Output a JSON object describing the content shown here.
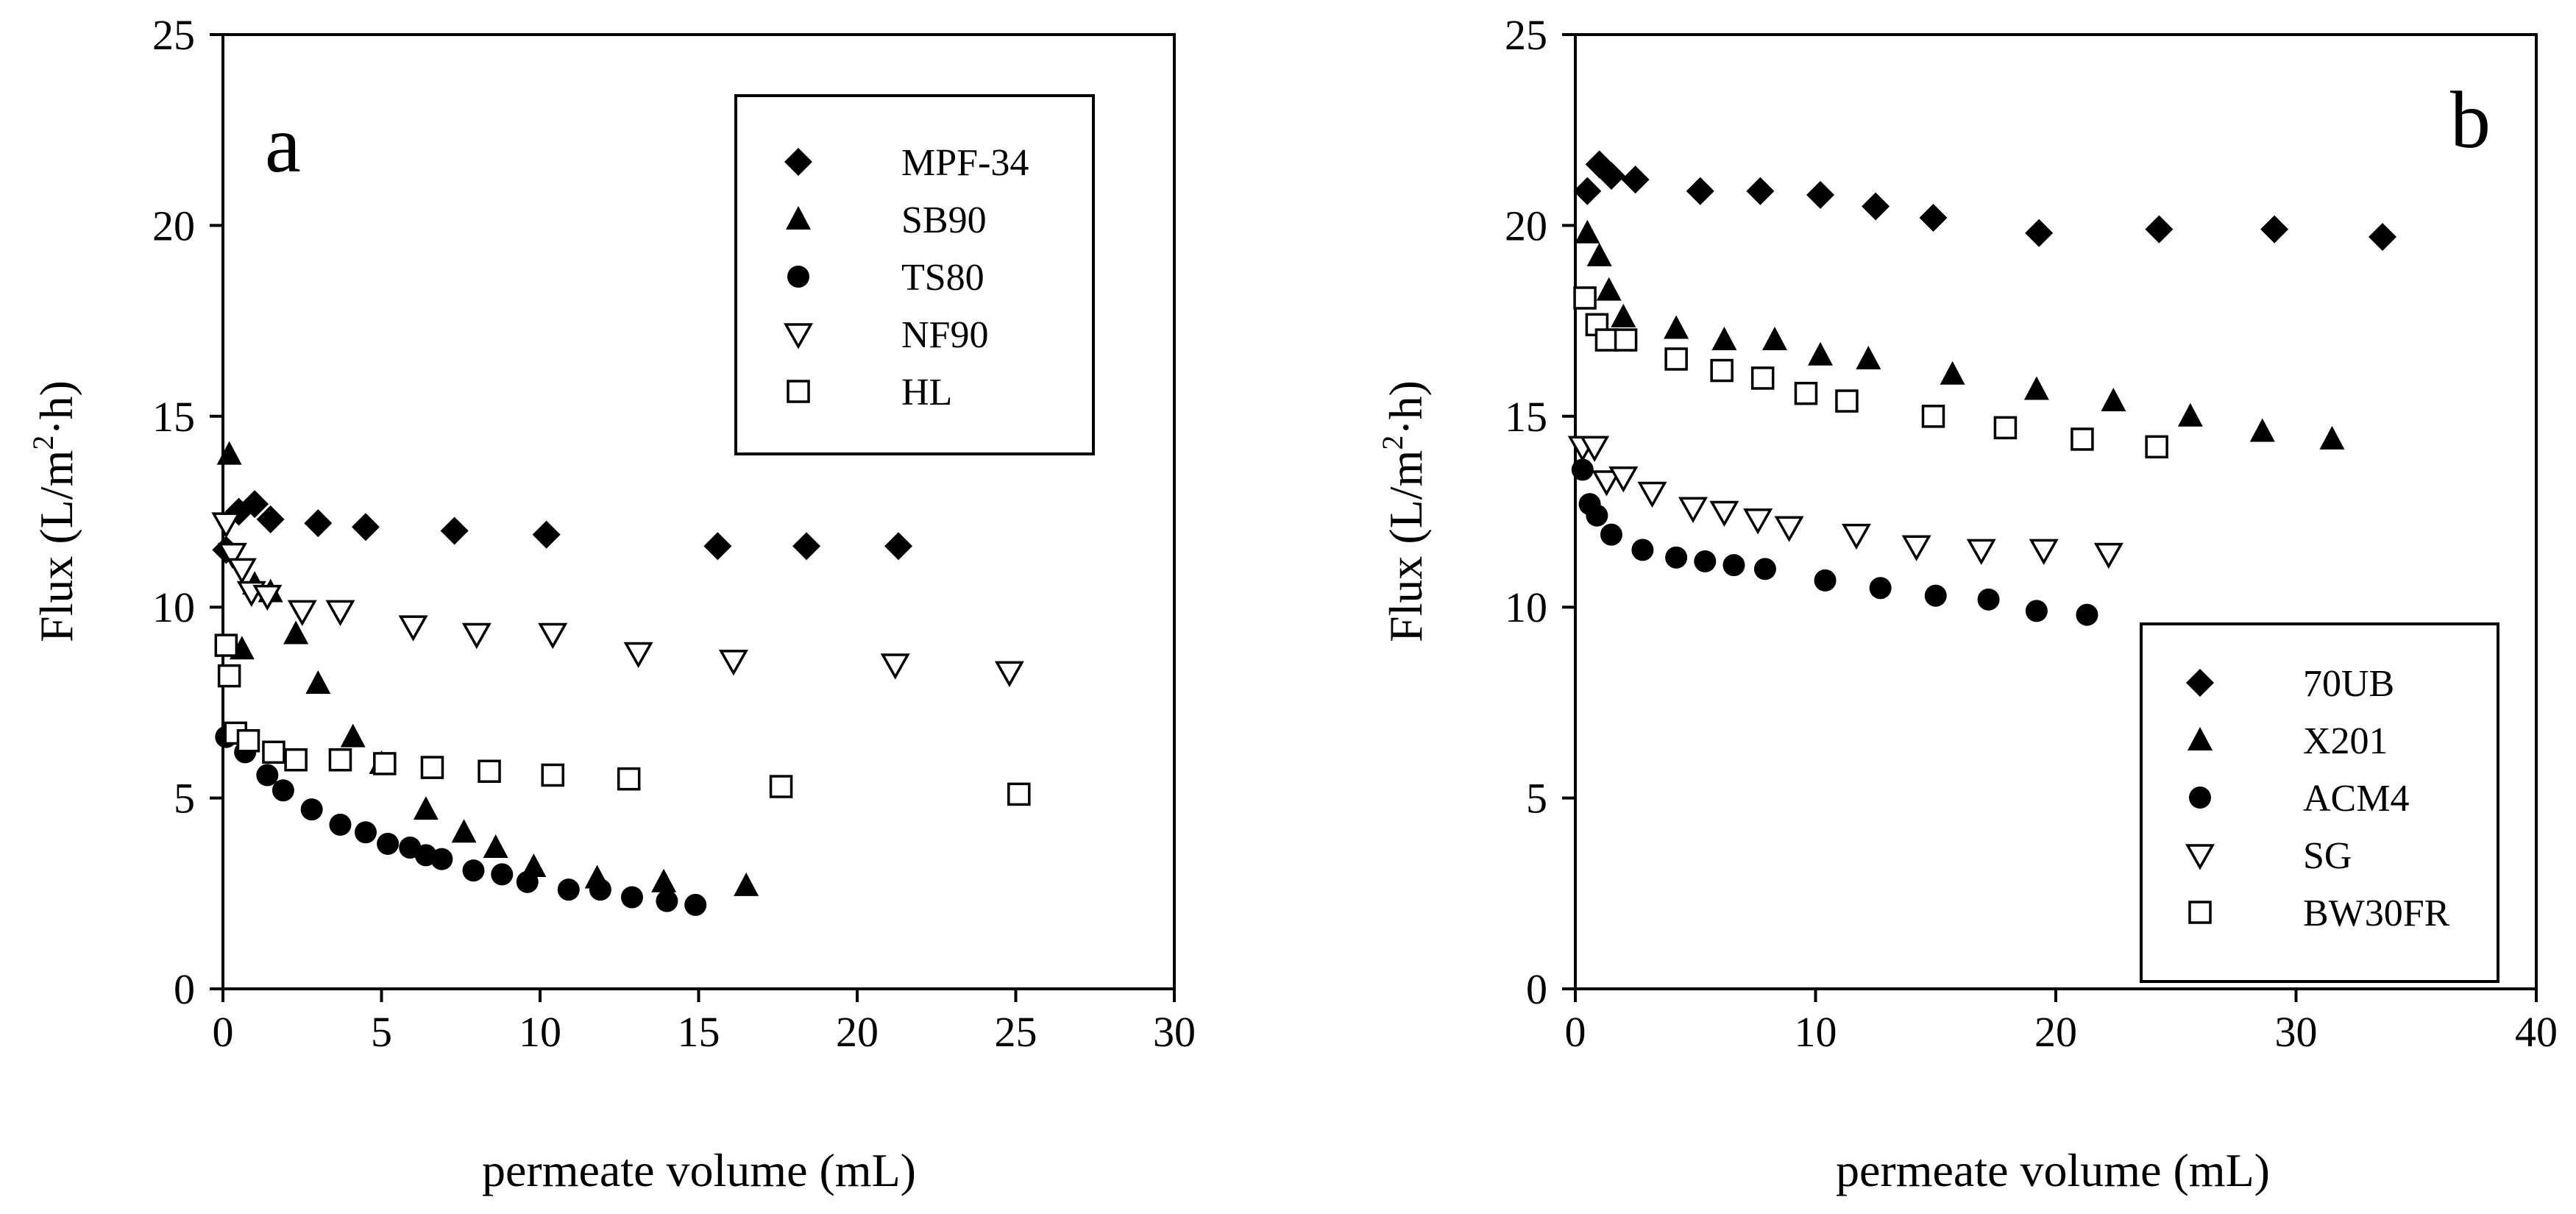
{
  "chart_data": [
    {
      "type": "scatter",
      "panel_label": "a",
      "xlabel": "permeate volume (mL)",
      "ylabel_main": "Flux (L/m",
      "ylabel_sup": "2",
      "ylabel_tail": "·h)",
      "xlim": [
        0,
        30
      ],
      "ylim": [
        0,
        25
      ],
      "xticks": [
        "0",
        "5",
        "10",
        "15",
        "20",
        "25",
        "30"
      ],
      "yticks": [
        "0",
        "5",
        "10",
        "15",
        "20",
        "25"
      ],
      "legend_position": "top-right",
      "series": [
        {
          "name": "MPF-34",
          "marker": "diamond",
          "x": [
            0.1,
            0.5,
            1.0,
            1.5,
            3.0,
            4.5,
            7.3,
            10.2,
            15.6,
            18.4,
            21.3
          ],
          "y": [
            11.5,
            12.5,
            12.7,
            12.3,
            12.2,
            12.1,
            12.0,
            11.9,
            11.6,
            11.6,
            11.6
          ]
        },
        {
          "name": "SB90",
          "marker": "triangle",
          "x": [
            0.2,
            0.6,
            1.0,
            1.5,
            2.3,
            3.0,
            4.1,
            5.0,
            6.4,
            7.6,
            8.6,
            9.8,
            11.8,
            13.9,
            16.5
          ],
          "y": [
            14.0,
            8.9,
            10.6,
            10.4,
            9.3,
            8.0,
            6.6,
            5.9,
            4.7,
            4.1,
            3.7,
            3.2,
            2.9,
            2.8,
            2.7
          ]
        },
        {
          "name": "TS80",
          "marker": "circle",
          "x": [
            0.1,
            0.7,
            1.4,
            1.9,
            2.8,
            3.7,
            4.5,
            5.2,
            5.9,
            6.4,
            6.9,
            7.9,
            8.8,
            9.6,
            10.9,
            11.9,
            12.9,
            14.0,
            14.9
          ],
          "y": [
            6.6,
            6.2,
            5.6,
            5.2,
            4.7,
            4.3,
            4.1,
            3.8,
            3.7,
            3.5,
            3.4,
            3.1,
            3.0,
            2.8,
            2.6,
            2.6,
            2.4,
            2.3,
            2.2
          ]
        },
        {
          "name": "NF90",
          "marker": "triangle-down",
          "x": [
            0.1,
            0.3,
            0.6,
            0.9,
            1.4,
            2.5,
            3.7,
            6.0,
            8.0,
            10.4,
            13.1,
            16.1,
            21.2,
            24.8
          ],
          "y": [
            12.2,
            11.4,
            11.0,
            10.4,
            10.3,
            9.9,
            9.9,
            9.5,
            9.3,
            9.3,
            8.8,
            8.6,
            8.5,
            8.3
          ]
        },
        {
          "name": "HL",
          "marker": "square",
          "x": [
            0.1,
            0.2,
            0.4,
            0.8,
            1.6,
            2.3,
            3.7,
            5.1,
            6.6,
            8.4,
            10.4,
            12.8,
            17.6,
            25.1
          ],
          "y": [
            9.0,
            8.2,
            6.7,
            6.5,
            6.2,
            6.0,
            6.0,
            5.9,
            5.8,
            5.7,
            5.6,
            5.5,
            5.3,
            5.1
          ]
        }
      ]
    },
    {
      "type": "scatter",
      "panel_label": "b",
      "xlabel": "permeate volume (mL)",
      "ylabel_main": "Flux (L/m",
      "ylabel_sup": "2",
      "ylabel_tail": "·h)",
      "xlim": [
        0,
        40
      ],
      "ylim": [
        0,
        25
      ],
      "xticks": [
        "0",
        "10",
        "20",
        "30",
        "40"
      ],
      "yticks": [
        "0",
        "5",
        "10",
        "15",
        "20",
        "25"
      ],
      "legend_position": "bottom-right",
      "series": [
        {
          "name": "70UB",
          "marker": "diamond",
          "x": [
            0.5,
            1.0,
            1.5,
            2.5,
            5.2,
            7.7,
            10.2,
            12.5,
            14.9,
            19.3,
            24.3,
            29.1,
            33.6
          ],
          "y": [
            20.9,
            21.6,
            21.3,
            21.2,
            20.9,
            20.9,
            20.8,
            20.5,
            20.2,
            19.8,
            19.9,
            19.9,
            19.7
          ]
        },
        {
          "name": "X201",
          "marker": "triangle",
          "x": [
            0.5,
            1.0,
            1.4,
            2.0,
            4.2,
            6.2,
            8.3,
            10.2,
            12.2,
            15.7,
            19.2,
            22.4,
            25.6,
            28.6,
            31.5
          ],
          "y": [
            19.8,
            19.2,
            18.3,
            17.6,
            17.3,
            17.0,
            17.0,
            16.6,
            16.5,
            16.1,
            15.7,
            15.4,
            15.0,
            14.6,
            14.4
          ]
        },
        {
          "name": "ACM4",
          "marker": "circle",
          "x": [
            0.3,
            0.6,
            0.9,
            1.5,
            2.8,
            4.2,
            5.4,
            6.6,
            7.9,
            10.4,
            12.7,
            15.0,
            17.2,
            19.2,
            21.3
          ],
          "y": [
            13.6,
            12.7,
            12.4,
            11.9,
            11.5,
            11.3,
            11.2,
            11.1,
            11.0,
            10.7,
            10.5,
            10.3,
            10.2,
            9.9,
            9.8
          ]
        },
        {
          "name": "SG",
          "marker": "triangle-down",
          "x": [
            0.3,
            0.8,
            1.3,
            2.0,
            3.2,
            4.9,
            6.2,
            7.6,
            8.9,
            11.7,
            14.2,
            16.9,
            19.5,
            22.2
          ],
          "y": [
            14.2,
            14.2,
            13.3,
            13.4,
            13.0,
            12.6,
            12.5,
            12.3,
            12.1,
            11.9,
            11.6,
            11.5,
            11.5,
            11.4
          ]
        },
        {
          "name": "BW30FR",
          "marker": "square",
          "x": [
            0.4,
            0.9,
            1.3,
            2.1,
            4.2,
            6.1,
            7.8,
            9.6,
            11.3,
            14.9,
            17.9,
            21.1,
            24.2
          ],
          "y": [
            18.1,
            17.4,
            17.0,
            17.0,
            16.5,
            16.2,
            16.0,
            15.6,
            15.4,
            15.0,
            14.7,
            14.4,
            14.2
          ]
        }
      ]
    }
  ]
}
